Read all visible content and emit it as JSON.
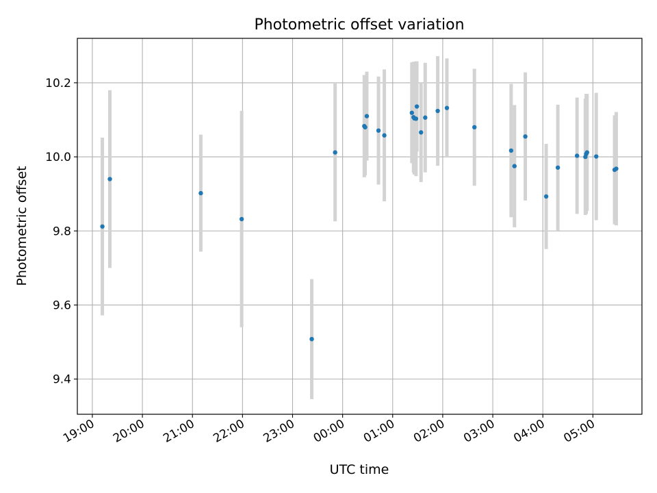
{
  "chart_data": {
    "type": "scatter",
    "title": "Photometric offset variation",
    "xlabel": "UTC time",
    "ylabel": "Photometric offset",
    "x_tick_labels": [
      "19:00",
      "20:00",
      "21:00",
      "22:00",
      "23:00",
      "00:00",
      "01:00",
      "02:00",
      "03:00",
      "04:00",
      "05:00"
    ],
    "y_tick_labels": [
      "9.4",
      "9.6",
      "9.8",
      "10.0",
      "10.2"
    ],
    "y_ticks": [
      9.4,
      9.6,
      9.8,
      10.0,
      10.2
    ],
    "ylim": [
      9.305,
      10.32
    ],
    "xlim_hours": [
      18.7,
      29.98
    ],
    "grid": true,
    "point_color": "#1f77b4",
    "errorbar_color": "#d3d3d3",
    "points": [
      {
        "t": "19:12",
        "y": 9.812,
        "err": 0.24
      },
      {
        "t": "19:21",
        "y": 9.94,
        "err": 0.24
      },
      {
        "t": "21:10",
        "y": 9.902,
        "err": 0.158
      },
      {
        "t": "21:59",
        "y": 9.832,
        "err": 0.292
      },
      {
        "t": "23:23",
        "y": 9.508,
        "err": 0.162
      },
      {
        "t": "23:51",
        "y": 10.012,
        "err": 0.186
      },
      {
        "t": "00:26",
        "y": 10.083,
        "err": 0.138
      },
      {
        "t": "00:27",
        "y": 10.08,
        "err": 0.13
      },
      {
        "t": "00:29",
        "y": 10.11,
        "err": 0.12
      },
      {
        "t": "00:43",
        "y": 10.071,
        "err": 0.146
      },
      {
        "t": "00:50",
        "y": 10.058,
        "err": 0.178
      },
      {
        "t": "01:23",
        "y": 10.119,
        "err": 0.136
      },
      {
        "t": "01:25",
        "y": 10.107,
        "err": 0.15
      },
      {
        "t": "01:26",
        "y": 10.104,
        "err": 0.152
      },
      {
        "t": "01:28",
        "y": 10.103,
        "err": 0.155
      },
      {
        "t": "01:29",
        "y": 10.136,
        "err": 0.122
      },
      {
        "t": "01:34",
        "y": 10.066,
        "err": 0.134
      },
      {
        "t": "01:39",
        "y": 10.106,
        "err": 0.148
      },
      {
        "t": "01:54",
        "y": 10.124,
        "err": 0.148
      },
      {
        "t": "02:05",
        "y": 10.132,
        "err": 0.134
      },
      {
        "t": "02:38",
        "y": 10.08,
        "err": 0.158
      },
      {
        "t": "03:22",
        "y": 10.017,
        "err": 0.18
      },
      {
        "t": "03:26",
        "y": 9.975,
        "err": 0.165
      },
      {
        "t": "03:39",
        "y": 10.055,
        "err": 0.173
      },
      {
        "t": "04:04",
        "y": 9.893,
        "err": 0.142
      },
      {
        "t": "04:18",
        "y": 9.971,
        "err": 0.17
      },
      {
        "t": "04:41",
        "y": 10.003,
        "err": 0.157
      },
      {
        "t": "04:51",
        "y": 10.0,
        "err": 0.157
      },
      {
        "t": "04:52",
        "y": 10.008,
        "err": 0.162
      },
      {
        "t": "04:53",
        "y": 10.012,
        "err": 0.158
      },
      {
        "t": "05:04",
        "y": 10.001,
        "err": 0.172
      },
      {
        "t": "05:26",
        "y": 9.965,
        "err": 0.147
      },
      {
        "t": "05:28",
        "y": 9.968,
        "err": 0.153
      }
    ]
  }
}
